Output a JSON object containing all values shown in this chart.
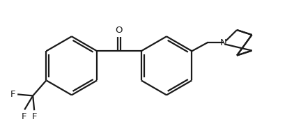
{
  "background_color": "#ffffff",
  "line_color": "#1a1a1a",
  "text_color": "#1a1a1a",
  "line_width": 1.6,
  "font_size": 9.5,
  "fig_width": 4.22,
  "fig_height": 1.78,
  "dpi": 100,
  "xlim": [
    0,
    10.5
  ],
  "ylim": [
    0,
    4.2
  ]
}
